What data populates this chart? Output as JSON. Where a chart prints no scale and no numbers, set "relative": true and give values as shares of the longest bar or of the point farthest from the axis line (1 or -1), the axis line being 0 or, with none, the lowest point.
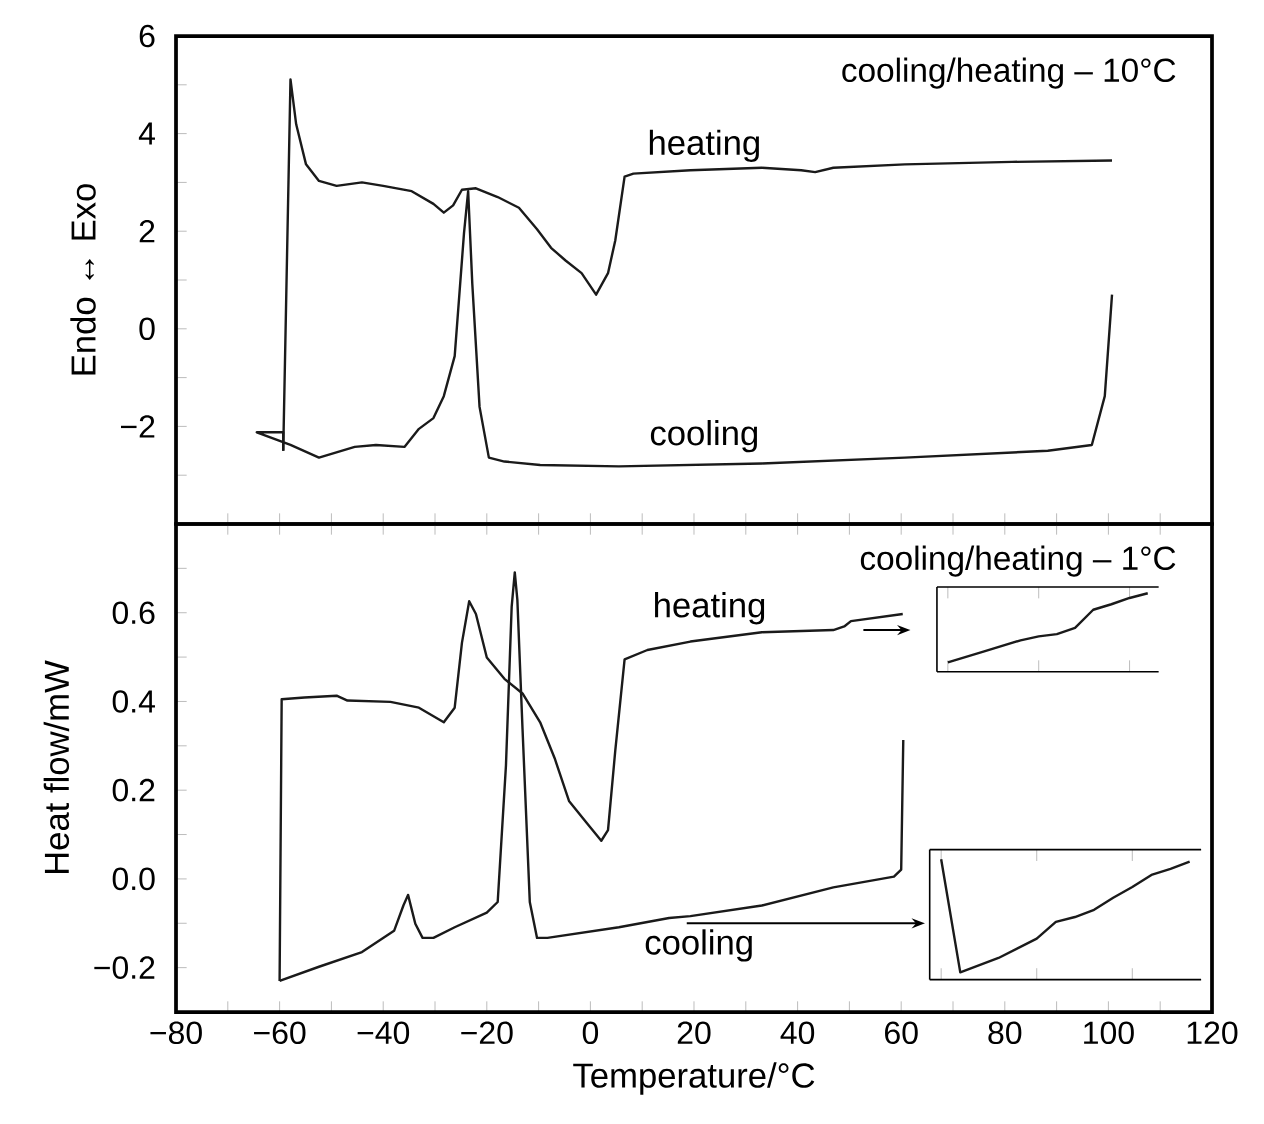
{
  "chart_data": [
    {
      "type": "line",
      "ylabel": "Endo ↔ Exo",
      "annotations": [
        "cooling/heating – 10°C"
      ],
      "xlim": [
        -80,
        120
      ],
      "xticks": [
        -80,
        {
          "value": -70,
          "label": null
        },
        -60,
        {
          "value": -50,
          "label": null
        },
        -40,
        {
          "value": -30,
          "label": null
        },
        -20,
        {
          "value": -10,
          "label": null
        },
        0,
        {
          "value": 10,
          "label": null
        },
        20,
        {
          "value": 30,
          "label": null
        },
        40,
        {
          "value": 50,
          "label": null
        },
        60,
        {
          "value": 70,
          "label": null
        },
        80,
        {
          "value": 90,
          "label": null
        },
        100,
        {
          "value": 110,
          "label": null
        },
        120
      ],
      "ylim": [
        -4,
        6
      ],
      "yticks": [
        {
          "value": -3,
          "label": null
        },
        {
          "value": -2,
          "label": "−2"
        },
        {
          "value": -1,
          "label": null
        },
        0,
        {
          "value": 1,
          "label": null
        },
        2,
        {
          "value": 3,
          "label": null
        },
        4,
        {
          "value": 5,
          "label": null
        },
        6
      ],
      "tick_labels": "y",
      "series": [
        {
          "name": "heating",
          "color": "#1a1a1a",
          "x": [
            -59.3,
            -57.9,
            -56.8,
            -54.9,
            -52.4,
            -49.0,
            -44.1,
            -40.0,
            -34.5,
            -30.3,
            -28.3,
            -26.5,
            -24.8,
            -22.1,
            -17.9,
            -13.8,
            -10.3,
            -7.6,
            -4.8,
            -1.7,
            1.1,
            3.4,
            4.8,
            6.6,
            8.3,
            19.3,
            33.1,
            40.7,
            43.4,
            46.9,
            60.7,
            81.4,
            100.7
          ],
          "values": [
            -2.5,
            5.11,
            4.19,
            3.37,
            3.03,
            2.93,
            3.0,
            2.93,
            2.82,
            2.56,
            2.38,
            2.53,
            2.85,
            2.88,
            2.7,
            2.48,
            2.04,
            1.66,
            1.4,
            1.14,
            0.7,
            1.14,
            1.81,
            3.12,
            3.18,
            3.25,
            3.3,
            3.25,
            3.21,
            3.3,
            3.37,
            3.42,
            3.45
          ]
        },
        {
          "name": "cooling",
          "color": "#1a1a1a",
          "x": [
            100.7,
            99.3,
            96.8,
            88.3,
            60.7,
            33.1,
            5.5,
            -9.7,
            -16.6,
            -19.6,
            -21.4,
            -22.8,
            -23.6,
            -24.4,
            -26.2,
            -28.3,
            -30.3,
            -33.1,
            -35.9,
            -41.4,
            -45.5,
            -52.4,
            -57.9,
            -64.4,
            -59.3,
            -59.3
          ],
          "values": [
            0.7,
            -1.38,
            -2.38,
            -2.5,
            -2.64,
            -2.76,
            -2.82,
            -2.79,
            -2.72,
            -2.64,
            -1.6,
            0.92,
            2.82,
            1.96,
            -0.56,
            -1.38,
            -1.83,
            -2.05,
            -2.42,
            -2.38,
            -2.42,
            -2.64,
            -2.38,
            -2.12,
            -2.12,
            -2.5
          ]
        }
      ]
    },
    {
      "type": "line",
      "xlabel": "Temperature/°C",
      "ylabel": "Heat flow/mW",
      "annotations": [
        "cooling/heating – 1°C"
      ],
      "xlim": [
        -80,
        120
      ],
      "xticks": [
        {
          "value": -80,
          "label": "−80"
        },
        {
          "value": -70,
          "label": null
        },
        {
          "value": -60,
          "label": "−60"
        },
        {
          "value": -50,
          "label": null
        },
        {
          "value": -40,
          "label": "−40"
        },
        {
          "value": -30,
          "label": null
        },
        {
          "value": -20,
          "label": "−20"
        },
        {
          "value": -10,
          "label": null
        },
        0,
        {
          "value": 10,
          "label": null
        },
        20,
        {
          "value": 30,
          "label": null
        },
        40,
        {
          "value": 50,
          "label": null
        },
        60,
        {
          "value": 70,
          "label": null
        },
        80,
        {
          "value": 90,
          "label": null
        },
        100,
        {
          "value": 110,
          "label": null
        },
        120
      ],
      "ylim": [
        -0.3,
        0.8
      ],
      "yticks": [
        {
          "value": -0.2,
          "label": "−0.2"
        },
        {
          "value": -0.1,
          "label": null
        },
        {
          "value": 0.0,
          "label": "0.0"
        },
        {
          "value": 0.1,
          "label": null
        },
        0.2,
        {
          "value": 0.3,
          "label": null
        },
        0.4,
        {
          "value": 0.5,
          "label": null
        },
        0.6,
        {
          "value": 0.7,
          "label": null
        }
      ],
      "series": [
        {
          "name": "heating",
          "color": "#1a1a1a",
          "x": [
            -60,
            -59.6,
            -55.2,
            -49.0,
            -46.9,
            -38.6,
            -33.1,
            -28.3,
            -26.2,
            -24.8,
            -23.4,
            -22.1,
            -20.0,
            -16.6,
            -13.1,
            -9.7,
            -6.9,
            -4.1,
            -0.7,
            2.1,
            3.4,
            4.8,
            6.6,
            11.0,
            19.3,
            33.1,
            46.9,
            49.0,
            50.3,
            60.3
          ],
          "values": [
            -0.23,
            0.405,
            0.409,
            0.413,
            0.402,
            0.399,
            0.386,
            0.353,
            0.386,
            0.532,
            0.626,
            0.597,
            0.499,
            0.451,
            0.418,
            0.353,
            0.272,
            0.175,
            0.126,
            0.086,
            0.11,
            0.289,
            0.495,
            0.516,
            0.535,
            0.556,
            0.561,
            0.569,
            0.581,
            0.597
          ]
        },
        {
          "name": "cooling",
          "color": "#1a1a1a",
          "x": [
            60.4,
            60.0,
            58.6,
            46.9,
            33.1,
            19.3,
            15.2,
            5.5,
            -8.3,
            -10.3,
            -11.7,
            -13.1,
            -14.1,
            -14.6,
            -15.2,
            -16.3,
            -17.9,
            -20.0,
            -26.2,
            -30.3,
            -32.4,
            -33.8,
            -35.2,
            -36.1,
            -37.9,
            -44.1,
            -52.4,
            -60
          ],
          "values": [
            0.313,
            0.021,
            0.005,
            -0.019,
            -0.06,
            -0.084,
            -0.088,
            -0.109,
            -0.133,
            -0.133,
            -0.052,
            0.337,
            0.629,
            0.691,
            0.613,
            0.256,
            -0.052,
            -0.076,
            -0.109,
            -0.133,
            -0.133,
            -0.101,
            -0.036,
            -0.06,
            -0.117,
            -0.165,
            -0.198,
            -0.23
          ]
        }
      ]
    },
    {
      "type": "line",
      "relative": true,
      "categories": [
        null,
        null,
        null,
        null,
        null,
        null,
        null,
        null,
        null,
        null,
        null,
        null
      ],
      "series": [
        {
          "color": "#1a1a1a",
          "values": [
            0.12,
            0.19,
            0.26,
            0.33,
            0.4,
            0.45,
            0.48,
            0.56,
            0.79,
            0.86,
            0.94,
            1
          ]
        }
      ]
    },
    {
      "type": "line",
      "relative": true,
      "categories": [
        null,
        null,
        null,
        null,
        null,
        null,
        null,
        null,
        null,
        null,
        null,
        null,
        null,
        null
      ],
      "series": [
        {
          "color": "#1a1a1a",
          "values": [
            1,
            0.06,
            0.12,
            0.18,
            0.26,
            0.34,
            0.48,
            0.52,
            0.58,
            0.68,
            0.77,
            0.87,
            0.92,
            0.98
          ]
        }
      ]
    }
  ]
}
